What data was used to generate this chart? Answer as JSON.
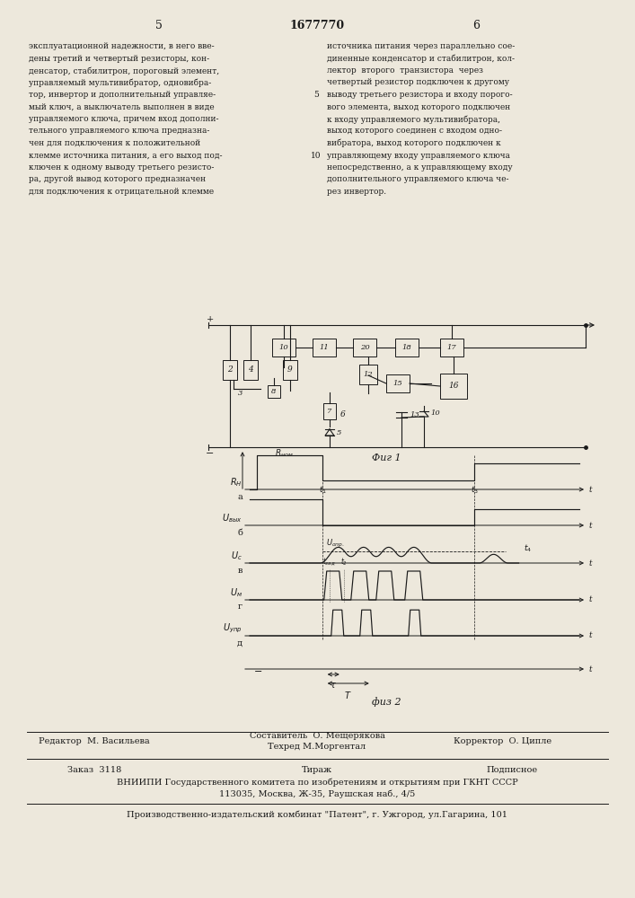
{
  "page_title": "1677770",
  "page_num_left": "5",
  "page_num_right": "6",
  "bg_color": "#ede8dc",
  "text_color": "#1a1a1a",
  "fig1_label": "Фиг 1",
  "fig2_label": "физ 2",
  "footer_line1_left": "Редактор  М. Васильева",
  "footer_line1_center_top": "Составитель  О. Мещерякова",
  "footer_line1_center_bot": "Техред М.Моргентал",
  "footer_line1_right": "Корректор  О. Ципле",
  "footer_zakaz": "Заказ  3118",
  "footer_tirazh": "Тираж",
  "footer_podpisnoe": "Подписное",
  "footer_vniipи": "ВНИИПИ Государственного комитета по изобретениям и открытиям при ГКНТ СССР",
  "footer_address": "113035, Москва, Ж-35, Раушская наб., 4/5",
  "footer_patent": "Производственно-издательский комбинат \"Патент\", г. Ужгород, ул.Гагарина, 101",
  "left_col": [
    "эксплуатационной надежности, в него вве-",
    "дены третий и четвертый резисторы, кон-",
    "денсатор, стабилитрон, пороговый элемент,",
    "управляемый мультивибратор, одновибра-",
    "тор, инвертор и дополнительный управляе-",
    "мый ключ, а выключатель выполнен в виде",
    "управляемого ключа, причем вход дополни-",
    "тельного управляемого ключа предназна-",
    "чен для подключения к положительной",
    "клемме источника питания, а его выход под-",
    "ключен к одному выводу третьего резисто-",
    "ра, другой вывод которого предназначен",
    "для подключения к отрицательной клемме"
  ],
  "right_col": [
    "источника питания через параллельно сое-",
    "диненные конденсатор и стабилитрон, кол-",
    "лектор  второго  транзистора  через",
    "четвертый резистор подключен к другому",
    "выводу третьего резистора и входу порого-",
    "вого элемента, выход которого подключен",
    "к входу управляемого мультивибратора,",
    "выход которого соединен с входом одно-",
    "вибратора, выход которого подключен к",
    "управляющему входу управляемого ключа",
    "непосредственно, а к управляющему входу",
    "дополнительного управляемого ключа че-",
    "рез инвертор."
  ],
  "line_num_5": "5",
  "line_num_10": "10"
}
